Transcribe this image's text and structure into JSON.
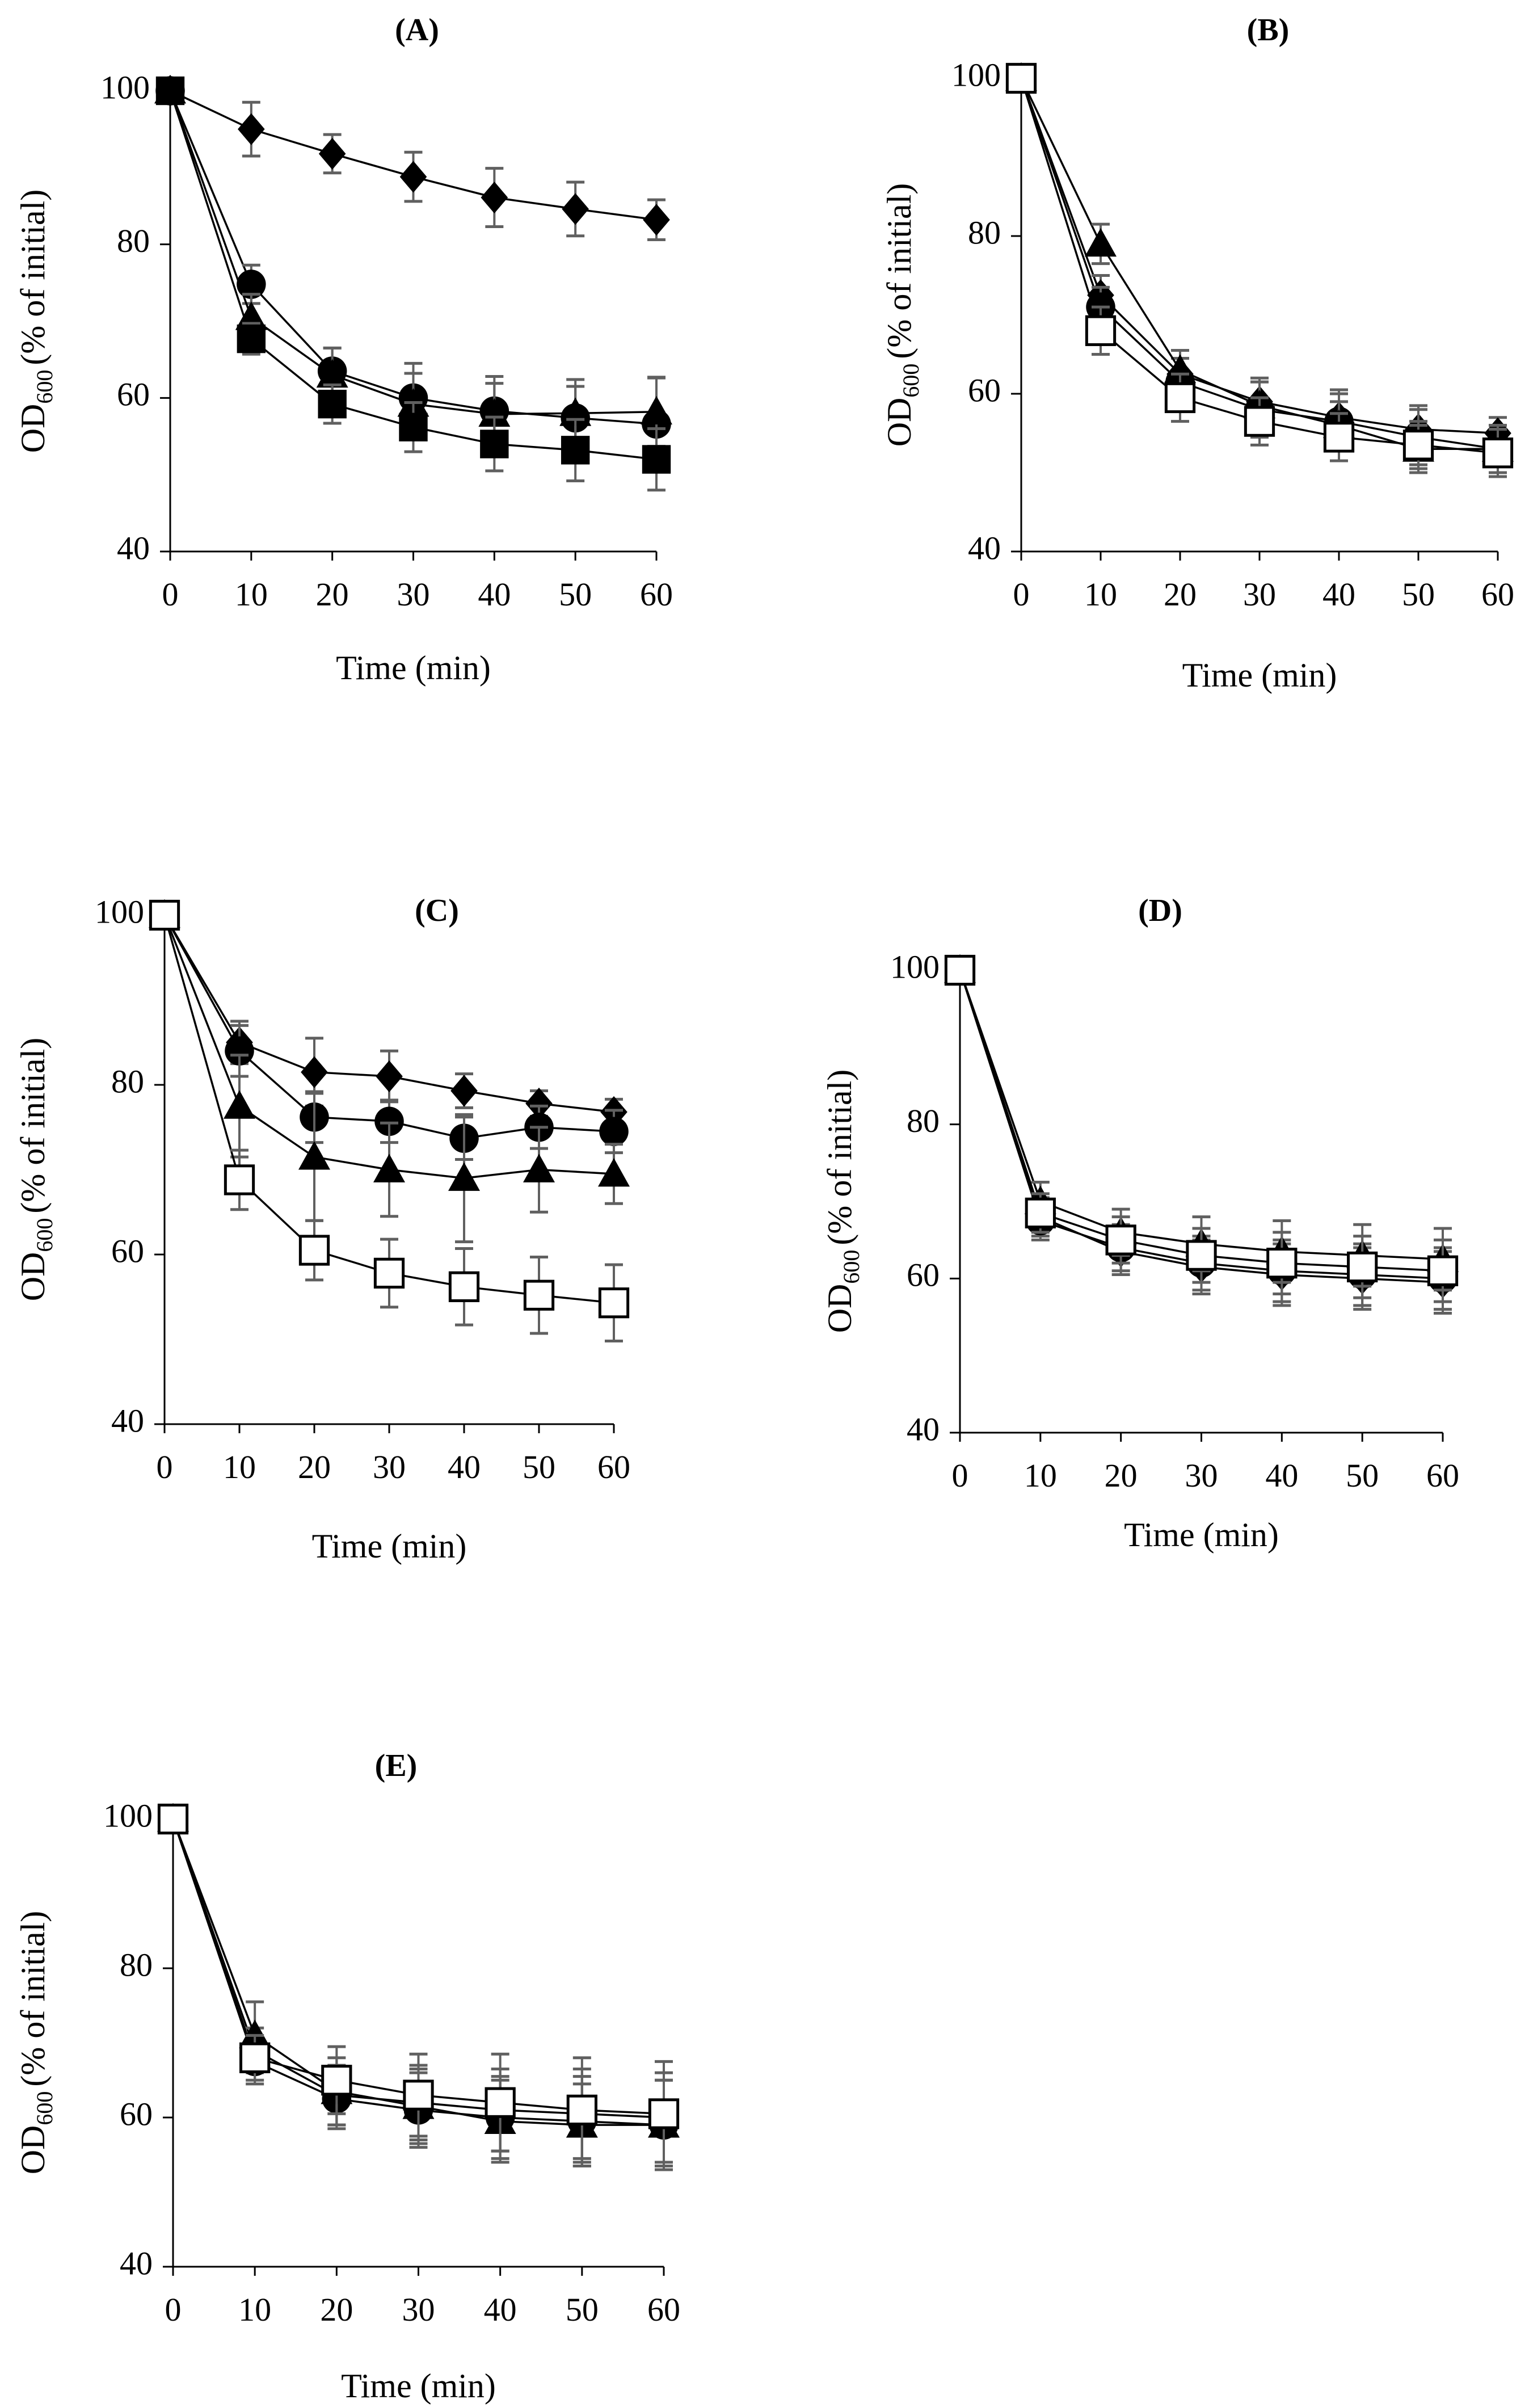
{
  "chart_data": [
    {
      "type": "line",
      "title": "(A)",
      "xlabel": "Time (min)",
      "ylabel_main": "OD",
      "ylabel_sub": "600",
      "ylabel_rest": "(% of initial)",
      "ylim": [
        40,
        100
      ],
      "yticks": [
        40,
        60,
        80,
        100
      ],
      "x": [
        0,
        10,
        20,
        30,
        40,
        50,
        60
      ],
      "series": [
        {
          "name": "diamond",
          "marker": "diamond",
          "values": [
            100,
            95,
            91.8,
            88.8,
            86.1,
            84.6,
            83.2
          ],
          "err": [
            0,
            3.5,
            2.5,
            3.2,
            3.8,
            3.5,
            2.6
          ]
        },
        {
          "name": "circle",
          "marker": "circle",
          "values": [
            100,
            74.8,
            63.5,
            60,
            58.3,
            57.4,
            56.6
          ],
          "err": [
            0,
            2.5,
            3,
            4.5,
            4.5,
            5,
            6
          ]
        },
        {
          "name": "triangle",
          "marker": "triangle",
          "values": [
            100,
            70.5,
            63,
            59.2,
            57.9,
            58,
            58.2
          ],
          "err": [
            0,
            3,
            3.5,
            4,
            4,
            3.5,
            4.5
          ]
        },
        {
          "name": "square",
          "marker": "square",
          "values": [
            100,
            67.7,
            59.2,
            56.2,
            54,
            53.2,
            52
          ],
          "err": [
            0,
            2,
            2.5,
            3.2,
            3.5,
            4,
            4
          ]
        }
      ]
    },
    {
      "type": "line",
      "title": "(B)",
      "xlabel": "Time (min)",
      "ylabel_main": "OD",
      "ylabel_sub": "600",
      "ylabel_rest": "(% of initial)",
      "ylim": [
        40,
        100
      ],
      "yticks": [
        40,
        60,
        80,
        100
      ],
      "x": [
        0,
        10,
        20,
        30,
        40,
        50,
        60
      ],
      "series": [
        {
          "name": "diamond",
          "marker": "diamond",
          "values": [
            100,
            72.5,
            62.5,
            59,
            57,
            55.5,
            55
          ],
          "err": [
            0,
            2.5,
            3,
            3,
            3.5,
            3,
            2
          ]
        },
        {
          "name": "circle",
          "marker": "circle",
          "values": [
            100,
            71,
            61.5,
            58,
            56.5,
            54.5,
            53
          ],
          "err": [
            0,
            2.5,
            3,
            3.5,
            3.5,
            3.5,
            3
          ]
        },
        {
          "name": "triangle",
          "marker": "triangle",
          "values": [
            100,
            79,
            63,
            58.5,
            56,
            53,
            53
          ],
          "err": [
            0,
            2.5,
            2.5,
            3,
            3,
            3,
            3
          ]
        },
        {
          "name": "open-square",
          "marker": "open-square",
          "values": [
            100,
            68,
            59.5,
            56.5,
            54.5,
            53.5,
            52.5
          ],
          "err": [
            0,
            3,
            3,
            3,
            3,
            3,
            3
          ]
        }
      ]
    },
    {
      "type": "line",
      "title": "(C)",
      "xlabel": "Time (min)",
      "ylabel_main": "OD",
      "ylabel_sub": "600",
      "ylabel_rest": "(% of initial)",
      "ylim": [
        40,
        100
      ],
      "yticks": [
        40,
        60,
        80,
        100
      ],
      "x": [
        0,
        10,
        20,
        30,
        40,
        50,
        60
      ],
      "series": [
        {
          "name": "diamond",
          "marker": "diamond",
          "values": [
            100,
            85,
            81.5,
            81,
            79.3,
            77.8,
            76.8
          ],
          "err": [
            0,
            2.5,
            4,
            3,
            2,
            1.5,
            1.5
          ]
        },
        {
          "name": "circle",
          "marker": "circle",
          "values": [
            100,
            84,
            76.2,
            75.7,
            73.7,
            75,
            74.5
          ],
          "err": [
            0,
            3,
            3,
            2.5,
            2.5,
            2.5,
            2.5
          ]
        },
        {
          "name": "triangle",
          "marker": "triangle",
          "values": [
            100,
            77.5,
            71.5,
            70,
            69,
            70,
            69.5
          ],
          "err": [
            0,
            6,
            7.5,
            5.5,
            7.5,
            5,
            3.5
          ]
        },
        {
          "name": "open-square",
          "marker": "open-square",
          "values": [
            100,
            68.8,
            60.5,
            57.8,
            56.2,
            55.2,
            54.3
          ],
          "err": [
            0,
            3.5,
            3.5,
            4,
            4.5,
            4.5,
            4.5
          ]
        }
      ]
    },
    {
      "type": "line",
      "title": "(D)",
      "xlabel": "Time (min)",
      "ylabel_main": "OD",
      "ylabel_sub": "600",
      "ylabel_rest": "(% of initial)",
      "ylim": [
        40,
        100
      ],
      "yticks": [
        40,
        60,
        80,
        100
      ],
      "x": [
        0,
        10,
        20,
        30,
        40,
        50,
        60
      ],
      "series": [
        {
          "name": "diamond",
          "marker": "diamond",
          "values": [
            100,
            68,
            63.5,
            61.5,
            60.5,
            60,
            59.5
          ],
          "err": [
            0,
            2.5,
            3,
            3.5,
            4,
            4,
            4
          ]
        },
        {
          "name": "circle",
          "marker": "circle",
          "values": [
            100,
            67.5,
            64,
            62,
            61,
            60.5,
            60
          ],
          "err": [
            0,
            2.5,
            3,
            3.5,
            4,
            4,
            4
          ]
        },
        {
          "name": "triangle",
          "marker": "triangle",
          "values": [
            100,
            70,
            66,
            64.5,
            63.5,
            63,
            62.5
          ],
          "err": [
            0,
            2.5,
            3,
            3.5,
            4,
            4,
            4
          ]
        },
        {
          "name": "open-square",
          "marker": "open-square",
          "values": [
            100,
            68.5,
            65,
            63,
            62,
            61.5,
            61
          ],
          "err": [
            0,
            2.5,
            3,
            3.5,
            4,
            4,
            4
          ]
        }
      ]
    },
    {
      "type": "line",
      "title": "(E)",
      "xlabel": "Time (min)",
      "ylabel_main": "OD",
      "ylabel_sub": "600",
      "ylabel_rest": "(% of initial)",
      "ylim": [
        40,
        100
      ],
      "yticks": [
        40,
        60,
        80,
        100
      ],
      "x": [
        0,
        10,
        20,
        30,
        40,
        50,
        60
      ],
      "series": [
        {
          "name": "diamond",
          "marker": "diamond",
          "values": [
            100,
            69,
            63,
            62,
            61,
            60.5,
            60
          ],
          "err": [
            0,
            3,
            4,
            5,
            5.5,
            6,
            6
          ]
        },
        {
          "name": "circle",
          "marker": "circle",
          "values": [
            100,
            67.5,
            62.5,
            61,
            60,
            59.5,
            59
          ],
          "err": [
            0,
            3,
            4,
            5,
            5.5,
            6,
            6
          ]
        },
        {
          "name": "triangle",
          "marker": "triangle",
          "values": [
            100,
            71,
            63.5,
            61.5,
            59.5,
            59,
            59
          ],
          "err": [
            0,
            4.5,
            4.5,
            5,
            5.5,
            5.5,
            6
          ]
        },
        {
          "name": "open-square",
          "marker": "open-square",
          "values": [
            100,
            68,
            65,
            63,
            62,
            61,
            60.5
          ],
          "err": [
            0,
            3,
            4.5,
            5.5,
            6.5,
            7,
            7
          ]
        }
      ]
    }
  ]
}
